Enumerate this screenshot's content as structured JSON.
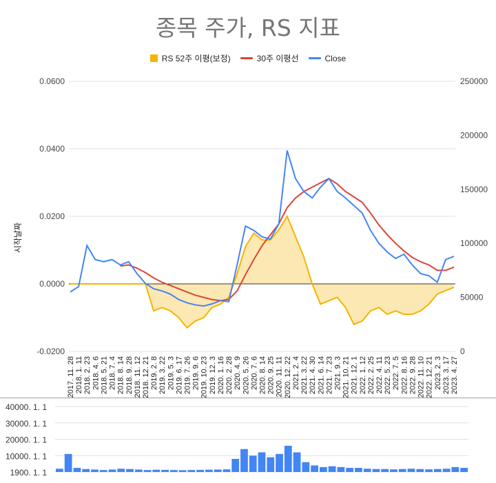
{
  "title": "종목 주가, RS 지표",
  "legend": {
    "rs": "RS 52주 이평(보정)",
    "ma": "30주 이평선",
    "close": "Close"
  },
  "colors": {
    "rs": "#f4b400",
    "rs_fill": "#fce8b2",
    "ma": "#db4437",
    "close": "#4285f4",
    "grid": "#e0e0e0",
    "zero": "#333333"
  },
  "chart_data": [
    {
      "type": "line",
      "title": "종목 주가, RS 지표",
      "ylabel_left": "시작날짜",
      "ylim_left": [
        -0.02,
        0.06
      ],
      "yticks_left": [
        "0.0600",
        "0.0400",
        "0.0200",
        "0.0000",
        "-0.0200"
      ],
      "ylim_right": [
        0,
        250000
      ],
      "yticks_right": [
        "250000",
        "200000",
        "150000",
        "100000",
        "50000",
        "0"
      ],
      "grid": true,
      "legend_position": "top",
      "x_tick_labels": [
        "2017. 11. 28",
        "2018. 1. 11",
        "2018. 2. 23",
        "2018. 4. 6",
        "2018. 5. 21",
        "2018. 7. 4",
        "2018. 8. 14",
        "2018. 9. 28",
        "2018. 11. 12",
        "2018. 12. 21",
        "2019. 2. 8",
        "2019. 3. 22",
        "2019. 5. 3",
        "2019. 6. 17",
        "2019. 7. 26",
        "2019. 9. 6",
        "2019. 10. 23",
        "2019. 12. 3",
        "2020. 1. 16",
        "2020. 2. 28",
        "2020. 4. 9",
        "2020. 5. 26",
        "2020. 7. 6",
        "2020. 8. 14",
        "2020. 9. 25",
        "2020. 11. 11",
        "2020. 12. 22",
        "2021. 2. 4",
        "2021. 3. 22",
        "2021. 4. 30",
        "2021. 6. 14",
        "2021. 7. 23",
        "2021. 9. 3",
        "2021. 10. 21",
        "2021. 12. 1",
        "2022. 1. 12",
        "2022. 2. 25",
        "2022. 4. 11",
        "2022. 5. 23",
        "2022. 7. 5",
        "2022. 8. 16",
        "2022. 9. 28",
        "2022. 11. 10",
        "2022. 12. 21",
        "2023. 2. 3",
        "2023. 3. 17",
        "2023. 4. 27"
      ],
      "series": [
        {
          "name": "RS 52주 이평(보정)",
          "axis": "left",
          "type": "area",
          "values": [
            0.0,
            0.0,
            0.0,
            0.0,
            0.0,
            0.0,
            0.0,
            0.0,
            0.0,
            0.0,
            -0.008,
            -0.007,
            -0.008,
            -0.01,
            -0.013,
            -0.011,
            -0.01,
            -0.007,
            -0.006,
            -0.004,
            0.003,
            0.011,
            0.015,
            0.013,
            0.013,
            0.016,
            0.02,
            0.014,
            0.008,
            0.0,
            -0.006,
            -0.005,
            -0.004,
            -0.007,
            -0.012,
            -0.011,
            -0.008,
            -0.007,
            -0.009,
            -0.008,
            -0.009,
            -0.009,
            -0.008,
            -0.006,
            -0.003,
            -0.002,
            -0.001
          ]
        },
        {
          "name": "30주 이평선",
          "axis": "right",
          "type": "line",
          "values": [
            null,
            null,
            null,
            null,
            null,
            null,
            79000,
            80000,
            77000,
            73000,
            68000,
            64000,
            61000,
            58000,
            55000,
            52000,
            50000,
            48000,
            47000,
            48000,
            56000,
            71000,
            85000,
            98000,
            108000,
            118000,
            133000,
            142000,
            148000,
            152000,
            156000,
            160000,
            155000,
            148000,
            143000,
            138000,
            128000,
            117000,
            108000,
            100000,
            93000,
            87000,
            83000,
            80000,
            75000,
            75000,
            78000
          ]
        },
        {
          "name": "Close",
          "axis": "right",
          "type": "line",
          "values": [
            55000,
            60000,
            98000,
            85000,
            83000,
            85000,
            80000,
            83000,
            72000,
            63000,
            58000,
            56000,
            53000,
            48000,
            45000,
            43000,
            42000,
            44000,
            47000,
            46000,
            80000,
            116000,
            112000,
            106000,
            104000,
            118000,
            186000,
            160000,
            148000,
            142000,
            152000,
            160000,
            148000,
            142000,
            135000,
            128000,
            112000,
            100000,
            92000,
            86000,
            90000,
            80000,
            72000,
            70000,
            64000,
            85000,
            88000
          ]
        }
      ]
    },
    {
      "type": "bar",
      "ytick_labels": [
        "40000. 1. 1",
        "30000. 1. 1",
        "20000. 1. 1",
        "10000. 1. 1",
        "1900. 1. 1"
      ],
      "ylim": [
        0,
        40000
      ],
      "values": [
        2000,
        11000,
        2500,
        1800,
        1500,
        1200,
        1500,
        2000,
        1800,
        1500,
        1200,
        1400,
        1300,
        1200,
        1100,
        1200,
        1300,
        1400,
        1500,
        1600,
        8000,
        14000,
        10000,
        12000,
        9000,
        11000,
        16000,
        12000,
        6000,
        4000,
        3000,
        3500,
        3000,
        2500,
        2500,
        2000,
        1800,
        1800,
        1600,
        1800,
        2000,
        1800,
        1600,
        1800,
        2000,
        3000,
        2500
      ]
    }
  ]
}
